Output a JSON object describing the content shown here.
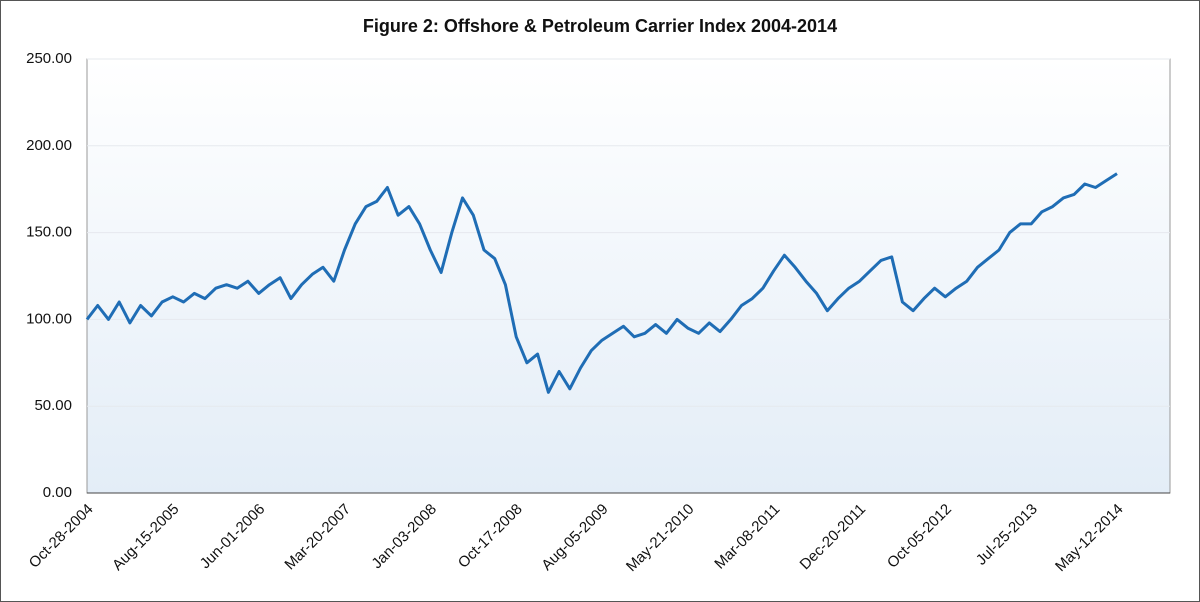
{
  "chart_data": {
    "type": "line",
    "title": "Figure 2: Offshore & Petroleum Carrier Index 2004-2014",
    "categories": [
      "Oct-28-2004",
      null,
      null,
      null,
      null,
      null,
      null,
      null,
      "Aug-15-2005",
      null,
      null,
      null,
      null,
      null,
      null,
      null,
      "Jun-01-2006",
      null,
      null,
      null,
      null,
      null,
      null,
      null,
      "Mar-20-2007",
      null,
      null,
      null,
      null,
      null,
      null,
      null,
      "Jan-03-2008",
      null,
      null,
      null,
      null,
      null,
      null,
      null,
      "Oct-17-2008",
      null,
      null,
      null,
      null,
      null,
      null,
      null,
      "Aug-05-2009",
      null,
      null,
      null,
      null,
      null,
      null,
      null,
      "May-21-2010",
      null,
      null,
      null,
      null,
      null,
      null,
      null,
      "Mar-08-2011",
      null,
      null,
      null,
      null,
      null,
      null,
      null,
      "Dec-20-2011",
      null,
      null,
      null,
      null,
      null,
      null,
      null,
      "Oct-05-2012",
      null,
      null,
      null,
      null,
      null,
      null,
      null,
      "Jul-25-2013",
      null,
      null,
      null,
      null,
      null,
      null,
      null,
      "May-12-2014"
    ],
    "series": [
      {
        "color": "#1f6db5",
        "values": [
          100,
          108,
          100,
          110,
          98,
          108,
          102,
          110,
          113,
          110,
          115,
          112,
          118,
          120,
          118,
          122,
          115,
          120,
          124,
          112,
          120,
          126,
          130,
          122,
          140,
          155,
          165,
          168,
          176,
          160,
          165,
          155,
          140,
          127,
          150,
          170,
          160,
          140,
          135,
          120,
          90,
          75,
          80,
          58,
          70,
          60,
          72,
          82,
          88,
          92,
          96,
          90,
          92,
          97,
          92,
          100,
          95,
          92,
          98,
          93,
          100,
          108,
          112,
          118,
          128,
          137,
          130,
          122,
          115,
          105,
          112,
          118,
          122,
          128,
          134,
          136,
          110,
          105,
          112,
          118,
          113,
          118,
          122,
          130,
          135,
          140,
          150,
          155,
          155,
          162,
          165,
          170,
          172,
          178,
          176,
          180,
          184
        ]
      }
    ],
    "ylim": [
      0,
      250
    ],
    "yticks": [
      {
        "value": 0,
        "label": "0.00"
      },
      {
        "value": 50,
        "label": "50.00"
      },
      {
        "value": 100,
        "label": "100.00"
      },
      {
        "value": 150,
        "label": "150.00"
      },
      {
        "value": 200,
        "label": "200.00"
      },
      {
        "value": 250,
        "label": "250.00"
      }
    ],
    "grid": true
  }
}
